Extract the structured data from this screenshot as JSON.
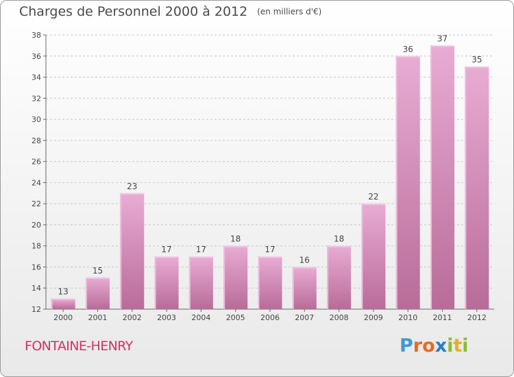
{
  "title": "Charges de Personnel 2000 à 2012",
  "subtitle": "(en milliers d'€)",
  "commune": "FONTAINE-HENRY",
  "logo": {
    "letters": [
      {
        "ch": "P",
        "color": "#3d9ad6"
      },
      {
        "ch": "r",
        "color": "#e86a20"
      },
      {
        "ch": "o",
        "color": "#e86a20"
      },
      {
        "ch": "x",
        "color": "#2b7ec0"
      },
      {
        "ch": "i",
        "color": "#8cbd2a"
      },
      {
        "ch": "t",
        "color": "#e8b020"
      },
      {
        "ch": "i",
        "color": "#8cbd2a"
      }
    ]
  },
  "chart_data": {
    "type": "bar",
    "categories": [
      "2000",
      "2001",
      "2002",
      "2003",
      "2004",
      "2005",
      "2006",
      "2007",
      "2008",
      "2009",
      "2010",
      "2011",
      "2012"
    ],
    "values": [
      13,
      15,
      23,
      17,
      17,
      18,
      17,
      16,
      18,
      22,
      36,
      37,
      35
    ],
    "ylim": [
      12,
      38
    ],
    "yticks": [
      12,
      14,
      16,
      18,
      20,
      22,
      24,
      26,
      28,
      30,
      32,
      34,
      36,
      38
    ],
    "grid": true,
    "bar_color": "#d98ab8"
  }
}
